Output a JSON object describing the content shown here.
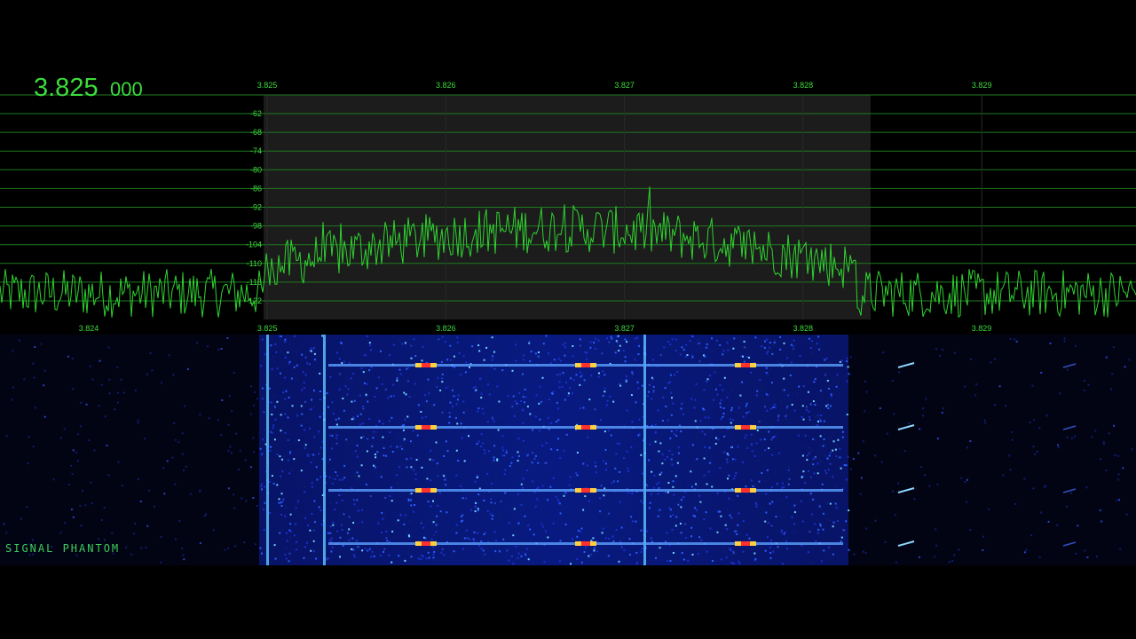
{
  "readout": {
    "main": "3.825",
    "sub": "000"
  },
  "top_scale": [
    "3.825",
    "3.826",
    "3.827",
    "3.828",
    "3.829"
  ],
  "db_scale": [
    "-62",
    "-68",
    "-74",
    "-80",
    "-86",
    "-92",
    "-98",
    "-104",
    "-110",
    "-116",
    "-122"
  ],
  "bottom_scale": [
    "3.824",
    "3.825",
    "3.826",
    "3.827",
    "3.828",
    "3.829"
  ],
  "watermark": "SIGNAL PHANTOM"
}
